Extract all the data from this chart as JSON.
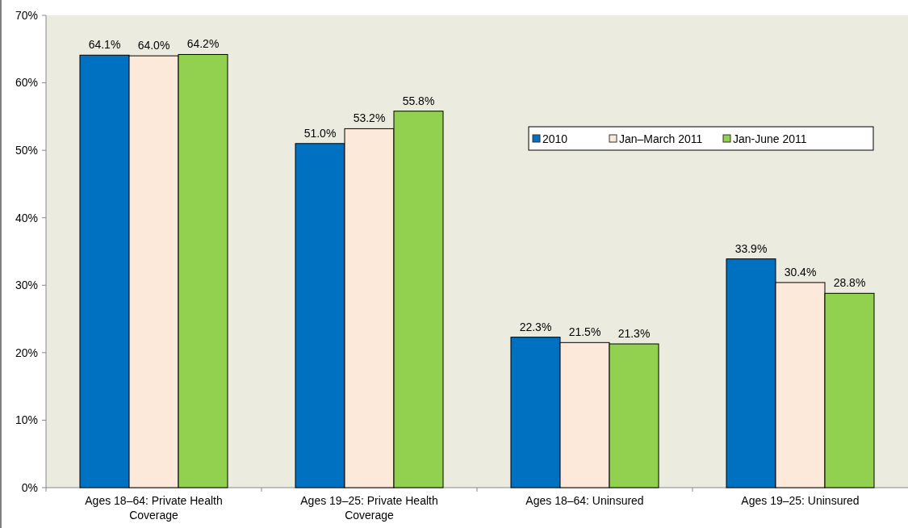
{
  "chart_data": {
    "type": "bar",
    "categories": [
      "Ages 18–64: Private Health Coverage",
      "Ages 19–25: Private Health Coverage",
      "Ages 18–64: Uninsured",
      "Ages 19–25: Uninsured"
    ],
    "series": [
      {
        "name": "2010",
        "color": "#0070c0",
        "values": [
          64.1,
          51.0,
          22.3,
          33.9
        ],
        "value_labels": [
          "64.1%",
          "51.0%",
          "22.3%",
          "33.9%"
        ]
      },
      {
        "name": "Jan–March 2011",
        "color": "#fde9d9",
        "values": [
          64.0,
          53.2,
          21.5,
          30.4
        ],
        "value_labels": [
          "64.0%",
          "53.2%",
          "21.5%",
          "30.4%"
        ]
      },
      {
        "name": "Jan-June 2011",
        "color": "#92d050",
        "values": [
          64.2,
          55.8,
          21.3,
          28.8
        ],
        "value_labels": [
          "64.2%",
          "55.8%",
          "21.3%",
          "28.8%"
        ]
      }
    ],
    "ylim": [
      0,
      70
    ],
    "yticks": [
      {
        "value": 0,
        "label": "0%"
      },
      {
        "value": 10,
        "label": "10%"
      },
      {
        "value": 20,
        "label": "20%"
      },
      {
        "value": 30,
        "label": "30%"
      },
      {
        "value": 40,
        "label": "40%"
      },
      {
        "value": 50,
        "label": "50%"
      },
      {
        "value": 60,
        "label": "60%"
      },
      {
        "value": 70,
        "label": "70%"
      }
    ],
    "grid": false,
    "legend": "top right"
  }
}
